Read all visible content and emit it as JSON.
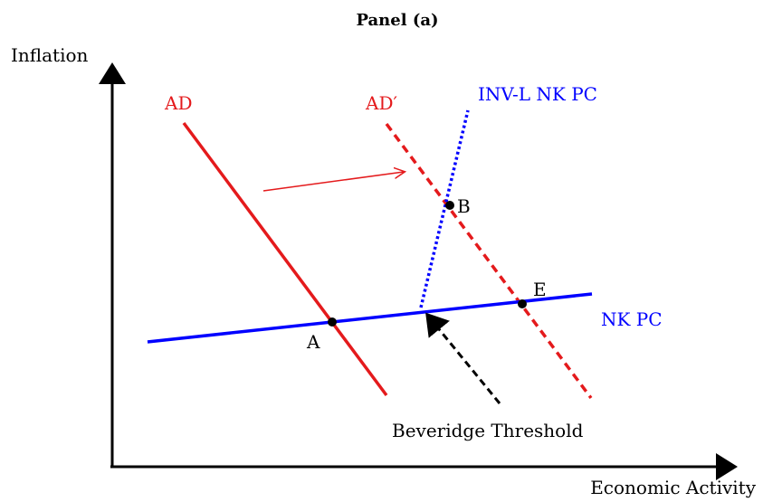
{
  "title": "Panel (a)",
  "axes": {
    "y_label": "Inflation",
    "x_label": "Economic Activity"
  },
  "curves": {
    "ad": "AD",
    "ad_prime": "AD′",
    "inv_l_nkpc": "INV-L NK PC",
    "nkpc": "NK PC"
  },
  "points": {
    "a": "A",
    "b": "B",
    "e": "E"
  },
  "annotations": {
    "beveridge": "Beveridge Threshold"
  },
  "colors": {
    "ad": "#e41a1c",
    "nkpc": "#0000ff",
    "axis": "#000000",
    "point": "#000000"
  }
}
